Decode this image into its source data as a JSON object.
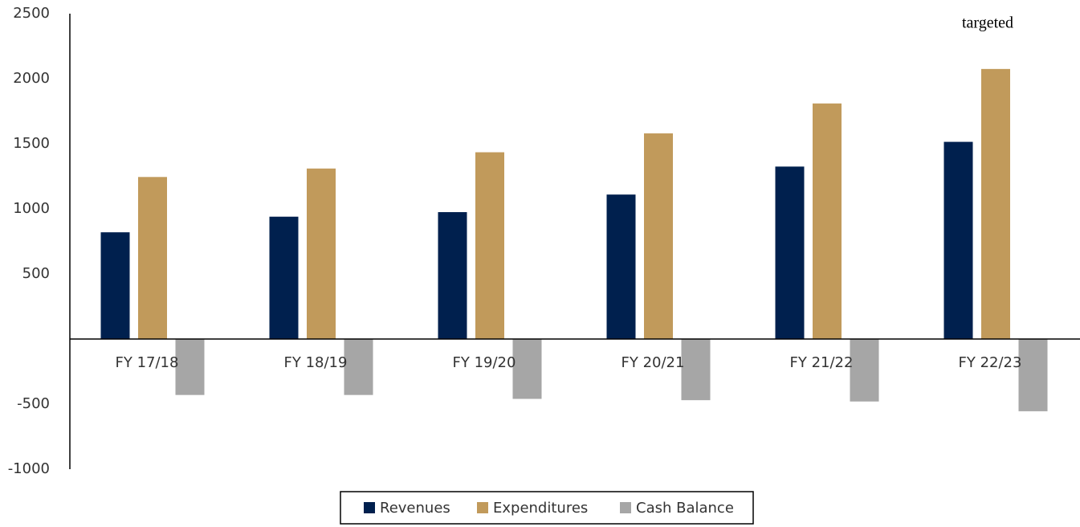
{
  "chart_data": {
    "type": "bar",
    "annotation": "targeted",
    "categories": [
      "FY 17/18",
      "FY 18/19",
      "FY 19/20",
      "FY 20/21",
      "FY 21/22",
      "FY 22/23"
    ],
    "series": [
      {
        "name": "Revenues",
        "color": "#00204e",
        "values": [
          820,
          940,
          975,
          1110,
          1325,
          1515
        ]
      },
      {
        "name": "Expenditures",
        "color": "#c19a5b",
        "values": [
          1245,
          1310,
          1435,
          1580,
          1810,
          2075
        ]
      },
      {
        "name": "Cash Balance",
        "color": "#a6a6a6",
        "values": [
          -430,
          -430,
          -460,
          -470,
          -480,
          -555
        ]
      }
    ],
    "ylim": [
      -1000,
      2500
    ],
    "yticks": [
      -1000,
      -500,
      500,
      1000,
      1500,
      2000,
      2500
    ],
    "legend": "bottom",
    "grid": false
  }
}
